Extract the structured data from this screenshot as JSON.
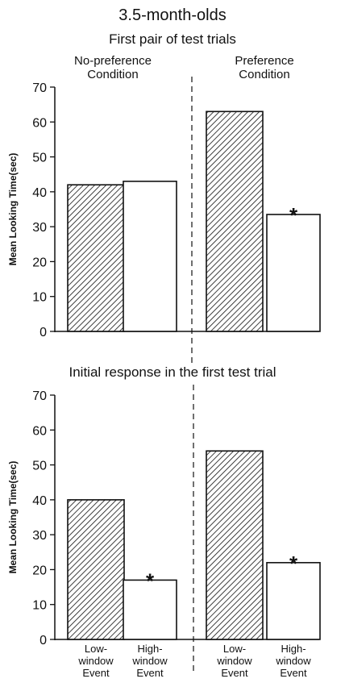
{
  "header": {
    "title": "3.5-month-olds",
    "subtitle_top": "First pair of test trials",
    "subtitle_bottom": "Initial response in the first test trial"
  },
  "colors": {
    "ink": "#111111",
    "hatch_fill": "#ffffff",
    "open_fill": "#ffffff"
  },
  "chart_data": [
    {
      "type": "bar",
      "title": "First pair of test trials",
      "ylabel": "Mean Looking Time(sec)",
      "ylim": [
        0,
        70
      ],
      "yticks": [
        "0",
        "10",
        "20",
        "30",
        "40",
        "50",
        "60",
        "70"
      ],
      "groups": [
        "No-preference Condition",
        "Preference Condition"
      ],
      "categories": [
        "Low-window Event",
        "High-window Event"
      ],
      "series": [
        {
          "values": [
            42,
            63
          ],
          "pattern": "hatched"
        },
        {
          "values": [
            43,
            33.5
          ],
          "pattern": "open"
        }
      ],
      "annotations": [
        {
          "group": 1,
          "series": 1,
          "text": "*"
        }
      ]
    },
    {
      "type": "bar",
      "title": "Initial response in the first test trial",
      "ylabel": "Mean Looking Time(sec)",
      "ylim": [
        0,
        70
      ],
      "yticks": [
        "0",
        "10",
        "20",
        "30",
        "40",
        "50",
        "60",
        "70"
      ],
      "groups": [
        "",
        ""
      ],
      "categories": [
        "Low-window Event",
        "High-window Event"
      ],
      "xticklabels": [
        [
          "Low-",
          "window",
          "Event"
        ],
        [
          "High-",
          "window",
          "Event"
        ],
        [
          "Low-",
          "window",
          "Event"
        ],
        [
          "High-",
          "window",
          "Event"
        ]
      ],
      "series": [
        {
          "values": [
            40,
            54
          ],
          "pattern": "hatched"
        },
        {
          "values": [
            17,
            22
          ],
          "pattern": "open"
        }
      ],
      "annotations": [
        {
          "group": 0,
          "series": 1,
          "text": "*"
        },
        {
          "group": 1,
          "series": 1,
          "text": "*"
        }
      ]
    }
  ]
}
